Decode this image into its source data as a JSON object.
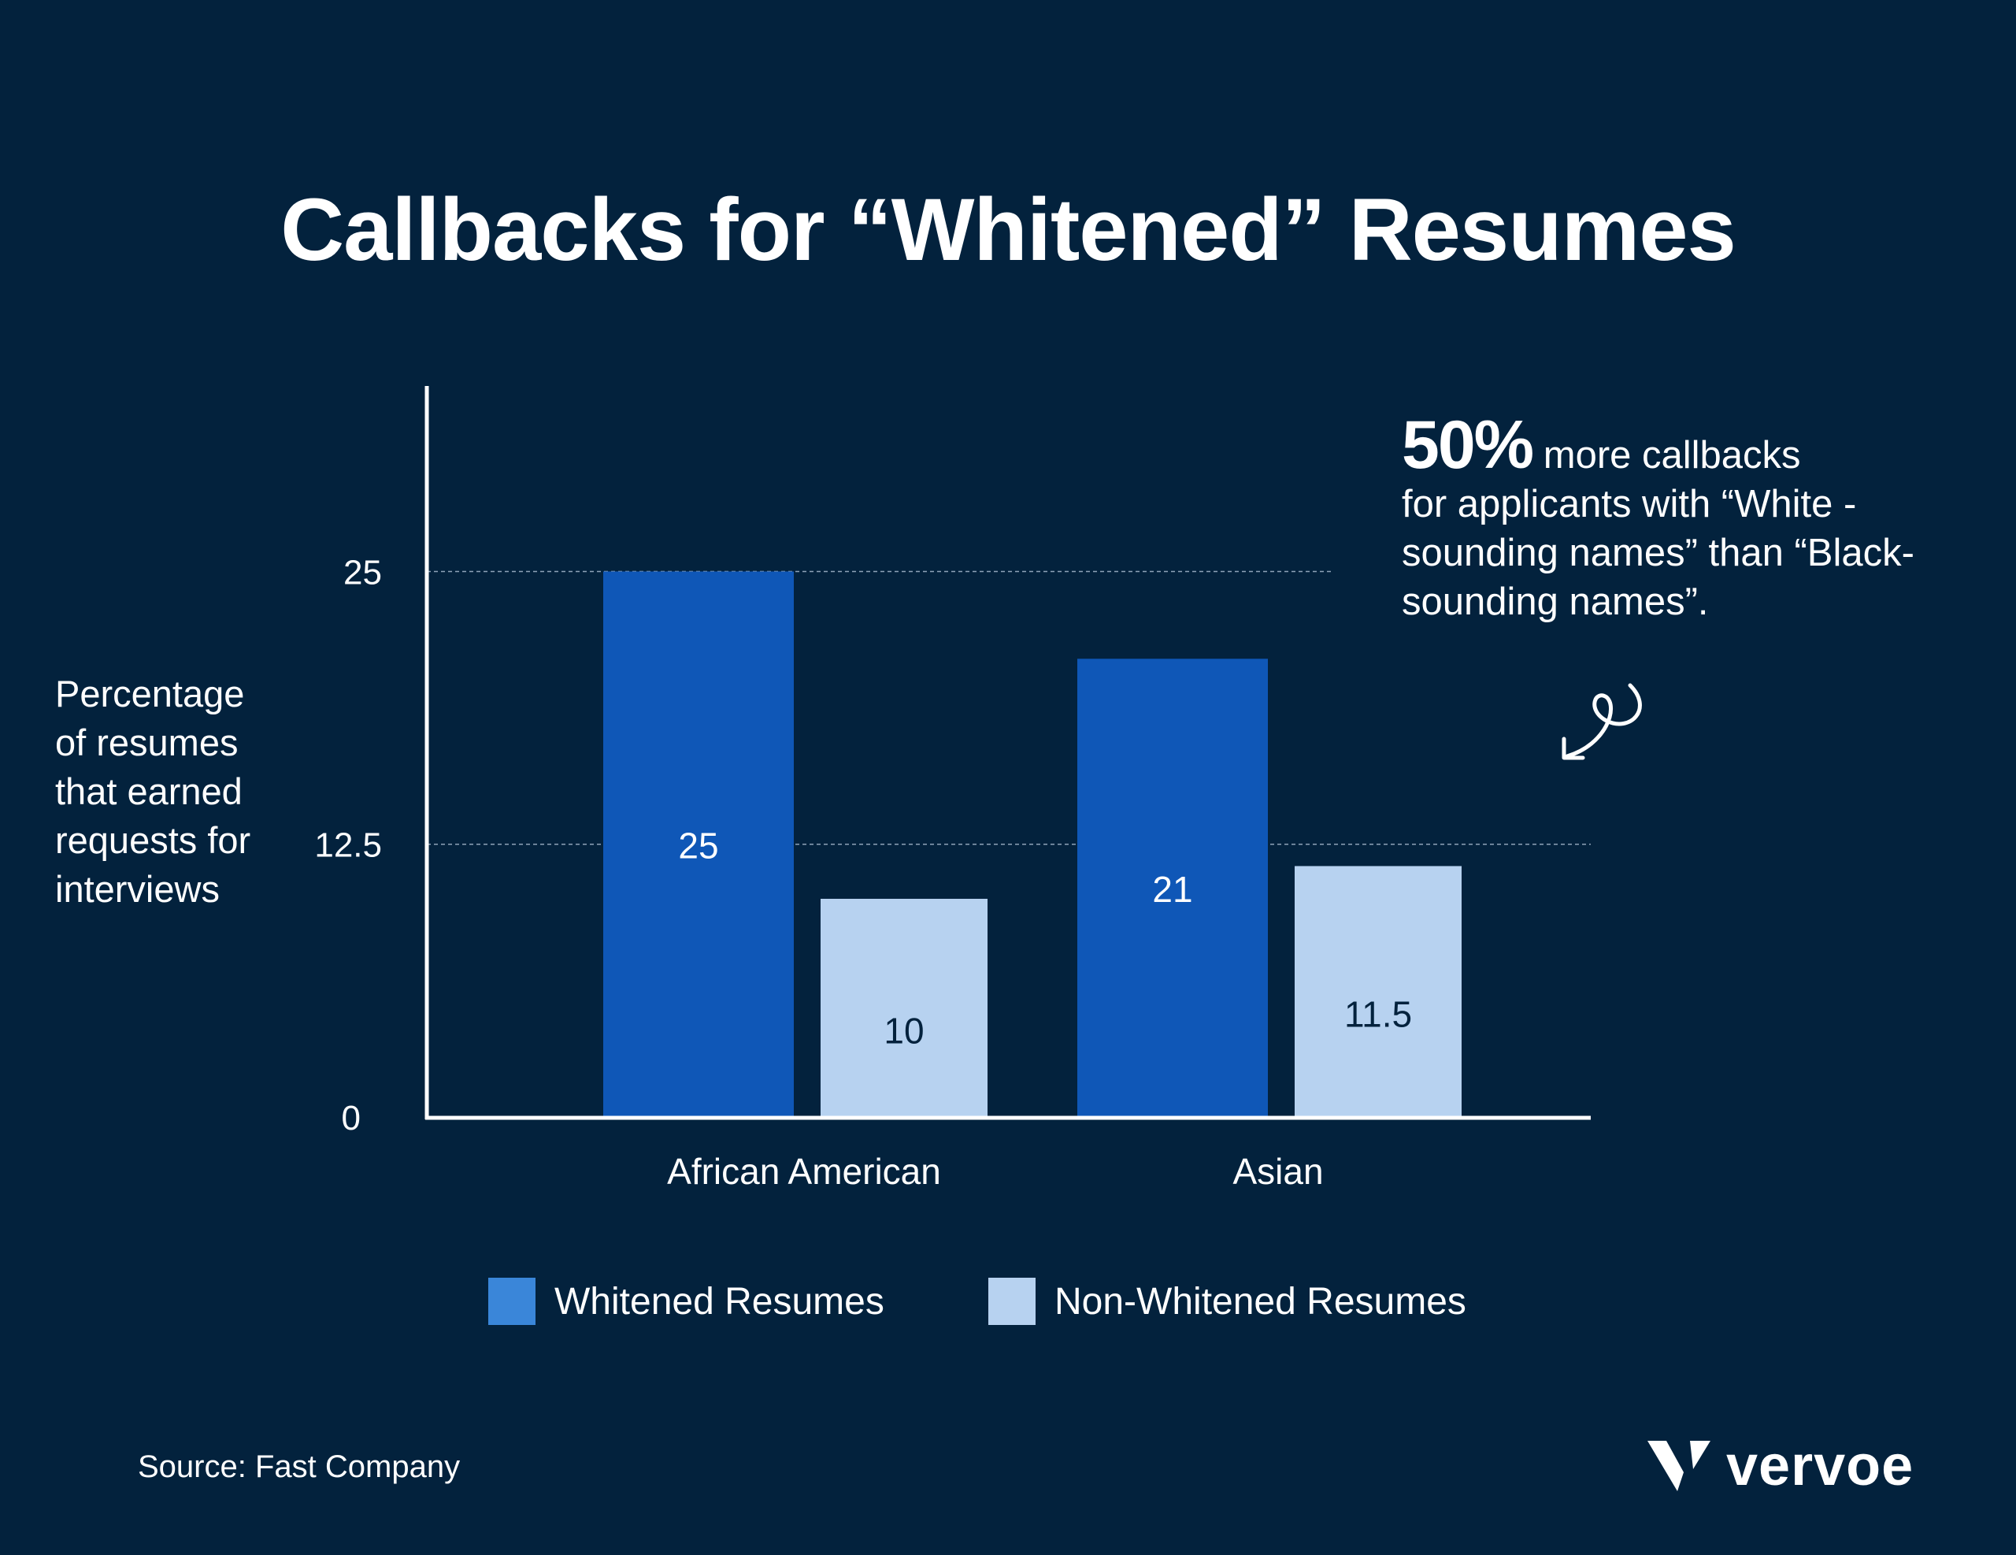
{
  "title": "Callbacks for “Whitened” Resumes",
  "y_axis_label": "Percentage\nof resumes\nthat earned\nrequests for\ninterviews",
  "callout": {
    "highlight": "50%",
    "text_line1": " more callbacks",
    "text_rest": "for applicants with “White -sounding names” than “Black-sounding names”."
  },
  "source": "Source: Fast Company",
  "brand": "vervoe",
  "colors": {
    "background": "#03223D",
    "whitened": "#0F57B7",
    "non_whitened": "#B7D2F0",
    "legend_whitened": "#3A86D9"
  },
  "chart_data": {
    "type": "bar",
    "title": "Callbacks for “Whitened” Resumes",
    "ylabel": "Percentage of resumes that earned requests for interviews",
    "xlabel": "",
    "categories": [
      "African American",
      "Asian"
    ],
    "series": [
      {
        "name": "Whitened Resumes",
        "values": [
          25,
          21
        ]
      },
      {
        "name": "Non-Whitened Resumes",
        "values": [
          10,
          11.5
        ]
      }
    ],
    "yticks": [
      "0",
      "12.5",
      "25"
    ],
    "ytick_values": [
      0,
      12.5,
      25
    ],
    "ylim": [
      0,
      33.5
    ],
    "data_labels": [
      [
        "25",
        "21"
      ],
      [
        "10",
        "11.5"
      ]
    ],
    "grid": "dashed at 12.5 and 25",
    "legend_position": "bottom"
  }
}
